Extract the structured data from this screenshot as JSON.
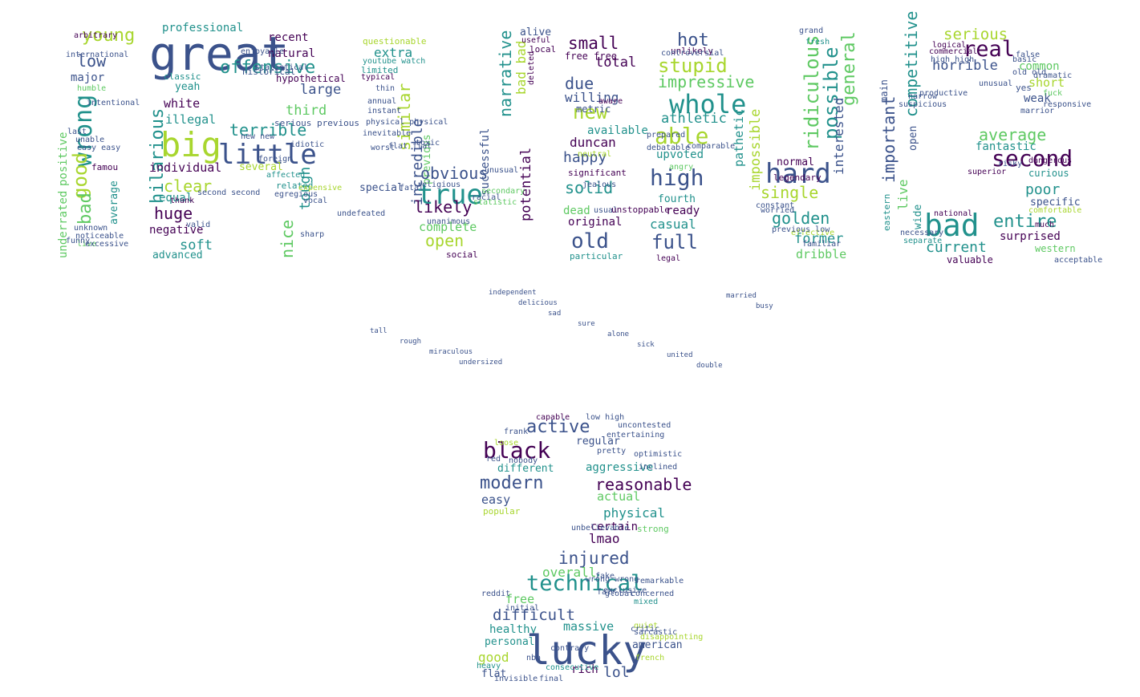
{
  "palette": [
    "#440154",
    "#3b528b",
    "#21918c",
    "#5ec962",
    "#a8d62e",
    "#fde725"
  ],
  "words": [
    {
      "t": "great",
      "c": "#3b528b"
    },
    {
      "t": "offensive",
      "c": "#21918c"
    },
    {
      "t": "young",
      "c": "#a8d62e"
    },
    {
      "t": "low",
      "c": "#3b528b"
    },
    {
      "t": "major",
      "c": "#3b528b"
    },
    {
      "t": "wrong",
      "c": "#21918c"
    },
    {
      "t": "good",
      "c": "#a8d62e"
    },
    {
      "t": "bad",
      "c": "#5ec962"
    },
    {
      "t": "positive",
      "c": "#5ec962"
    },
    {
      "t": "underrated",
      "c": "#5ec962"
    },
    {
      "t": "average",
      "c": "#21918c"
    },
    {
      "t": "famou",
      "c": "#440154"
    },
    {
      "t": "professional",
      "c": "#21918c"
    },
    {
      "t": "natural",
      "c": "#440154"
    },
    {
      "t": "recent",
      "c": "#440154"
    },
    {
      "t": "hypothetical",
      "c": "#440154"
    },
    {
      "t": "big",
      "c": "#a8d62e"
    },
    {
      "t": "little",
      "c": "#3b528b"
    },
    {
      "t": "terrible",
      "c": "#21918c"
    },
    {
      "t": "hilarious",
      "c": "#21918c"
    },
    {
      "t": "white",
      "c": "#440154"
    },
    {
      "t": "illegal",
      "c": "#21918c"
    },
    {
      "t": "individual",
      "c": "#440154"
    },
    {
      "t": "clear",
      "c": "#a8d62e"
    },
    {
      "t": "equal",
      "c": "#21918c"
    },
    {
      "t": "huge",
      "c": "#440154"
    },
    {
      "t": "negative",
      "c": "#440154"
    },
    {
      "t": "soft",
      "c": "#21918c"
    },
    {
      "t": "advanced",
      "c": "#21918c"
    },
    {
      "t": "classic",
      "c": "#21918c"
    },
    {
      "t": "yeah",
      "c": "#21918c"
    },
    {
      "t": "large",
      "c": "#3b528b"
    },
    {
      "t": "third",
      "c": "#5ec962"
    },
    {
      "t": "several",
      "c": "#a8d62e"
    },
    {
      "t": "nice",
      "c": "#5ec962"
    },
    {
      "t": "tough",
      "c": "#21918c"
    },
    {
      "t": "special",
      "c": "#3b528b"
    },
    {
      "t": "questionable",
      "c": "#a8d62e"
    },
    {
      "t": "extra",
      "c": "#21918c"
    },
    {
      "t": "youtube watch",
      "c": "#21918c"
    },
    {
      "t": "limited",
      "c": "#21918c"
    },
    {
      "t": "typical",
      "c": "#440154"
    },
    {
      "t": "similar",
      "c": "#a8d62e"
    },
    {
      "t": "incredible",
      "c": "#3b528b"
    },
    {
      "t": "previous",
      "c": "#5ec962"
    },
    {
      "t": "true",
      "c": "#21918c"
    },
    {
      "t": "obvious",
      "c": "#3b528b"
    },
    {
      "t": "likely",
      "c": "#440154"
    },
    {
      "t": "complete",
      "c": "#5ec962"
    },
    {
      "t": "open",
      "c": "#a8d62e"
    },
    {
      "t": "social",
      "c": "#440154"
    },
    {
      "t": "successful",
      "c": "#3b528b"
    },
    {
      "t": "narrative",
      "c": "#21918c"
    },
    {
      "t": "potential",
      "c": "#440154"
    },
    {
      "t": "bad bad",
      "c": "#a8d62e"
    },
    {
      "t": "alive",
      "c": "#3b528b"
    },
    {
      "t": "useful",
      "c": "#440154"
    },
    {
      "t": "local",
      "c": "#440154"
    },
    {
      "t": "deleted",
      "c": "#440154"
    },
    {
      "t": "small",
      "c": "#440154"
    },
    {
      "t": "free free",
      "c": "#440154"
    },
    {
      "t": "total",
      "c": "#440154"
    },
    {
      "t": "due",
      "c": "#3b528b"
    },
    {
      "t": "willing",
      "c": "#3b528b"
    },
    {
      "t": "new",
      "c": "#a8d62e"
    },
    {
      "t": "available",
      "c": "#21918c"
    },
    {
      "t": "duncan",
      "c": "#440154"
    },
    {
      "t": "happy",
      "c": "#3b528b"
    },
    {
      "t": "significant",
      "c": "#440154"
    },
    {
      "t": "solid",
      "c": "#21918c"
    },
    {
      "t": "dead",
      "c": "#5ec962"
    },
    {
      "t": "original",
      "c": "#440154"
    },
    {
      "t": "old",
      "c": "#3b528b"
    },
    {
      "t": "particular",
      "c": "#21918c"
    },
    {
      "t": "unlikely",
      "c": "#440154"
    },
    {
      "t": "hot",
      "c": "#3b528b"
    },
    {
      "t": "stupid",
      "c": "#a8d62e"
    },
    {
      "t": "impressive",
      "c": "#5ec962"
    },
    {
      "t": "whole",
      "c": "#21918c"
    },
    {
      "t": "athletic",
      "c": "#21918c"
    },
    {
      "t": "able",
      "c": "#a8d62e"
    },
    {
      "t": "upvoted",
      "c": "#21918c"
    },
    {
      "t": "high",
      "c": "#3b528b"
    },
    {
      "t": "fourth",
      "c": "#21918c"
    },
    {
      "t": "ready",
      "c": "#440154"
    },
    {
      "t": "casual",
      "c": "#21918c"
    },
    {
      "t": "full",
      "c": "#3b528b"
    },
    {
      "t": "ridiculous",
      "c": "#5ec962"
    },
    {
      "t": "possible",
      "c": "#21918c"
    },
    {
      "t": "general",
      "c": "#5ec962"
    },
    {
      "t": "pathetic",
      "c": "#21918c"
    },
    {
      "t": "impossible",
      "c": "#a8d62e"
    },
    {
      "t": "hard",
      "c": "#3b528b"
    },
    {
      "t": "single",
      "c": "#a8d62e"
    },
    {
      "t": "golden",
      "c": "#21918c"
    },
    {
      "t": "interested",
      "c": "#3b528b"
    },
    {
      "t": "normal",
      "c": "#440154"
    },
    {
      "t": "former",
      "c": "#21918c"
    },
    {
      "t": "dribble",
      "c": "#5ec962"
    },
    {
      "t": "legendary",
      "c": "#440154"
    },
    {
      "t": "important",
      "c": "#3b528b"
    },
    {
      "t": "competitive",
      "c": "#21918c"
    },
    {
      "t": "live",
      "c": "#5ec962"
    },
    {
      "t": "serious",
      "c": "#a8d62e"
    },
    {
      "t": "real",
      "c": "#440154"
    },
    {
      "t": "horrible",
      "c": "#3b528b"
    },
    {
      "t": "common",
      "c": "#5ec962"
    },
    {
      "t": "short",
      "c": "#a8d62e"
    },
    {
      "t": "weak",
      "c": "#3b528b"
    },
    {
      "t": "average",
      "c": "#5ec962"
    },
    {
      "t": "fantastic",
      "c": "#21918c"
    },
    {
      "t": "second",
      "c": "#440154"
    },
    {
      "t": "curious",
      "c": "#21918c"
    },
    {
      "t": "poor",
      "c": "#21918c"
    },
    {
      "t": "specific",
      "c": "#3b528b"
    },
    {
      "t": "bad",
      "c": "#21918c"
    },
    {
      "t": "entire",
      "c": "#21918c"
    },
    {
      "t": "surprised",
      "c": "#440154"
    },
    {
      "t": "current",
      "c": "#21918c"
    },
    {
      "t": "valuable",
      "c": "#440154"
    },
    {
      "t": "western",
      "c": "#5ec962"
    },
    {
      "t": "eastern",
      "c": "#21918c"
    },
    {
      "t": "wide",
      "c": "#21918c"
    },
    {
      "t": "open",
      "c": "#3b528b"
    },
    {
      "t": "main",
      "c": "#3b528b"
    },
    {
      "t": "commercial",
      "c": "#440154"
    },
    {
      "t": "high high",
      "c": "#3b528b"
    },
    {
      "t": "logical",
      "c": "#440154"
    },
    {
      "t": "capable",
      "c": "#440154"
    },
    {
      "t": "low high",
      "c": "#3b528b"
    },
    {
      "t": "active",
      "c": "#3b528b"
    },
    {
      "t": "regular",
      "c": "#3b528b"
    },
    {
      "t": "black",
      "c": "#440154"
    },
    {
      "t": "different",
      "c": "#21918c"
    },
    {
      "t": "modern",
      "c": "#3b528b"
    },
    {
      "t": "easy",
      "c": "#3b528b"
    },
    {
      "t": "popular",
      "c": "#a8d62e"
    },
    {
      "t": "aggressive",
      "c": "#21918c"
    },
    {
      "t": "reasonable",
      "c": "#440154"
    },
    {
      "t": "actual",
      "c": "#5ec962"
    },
    {
      "t": "physical",
      "c": "#21918c"
    },
    {
      "t": "certain",
      "c": "#440154"
    },
    {
      "t": "strong",
      "c": "#5ec962"
    },
    {
      "t": "lmao",
      "c": "#440154"
    },
    {
      "t": "injured",
      "c": "#3b528b"
    },
    {
      "t": "overall",
      "c": "#5ec962"
    },
    {
      "t": "technical",
      "c": "#21918c"
    },
    {
      "t": "free",
      "c": "#5ec962"
    },
    {
      "t": "difficult",
      "c": "#3b528b"
    },
    {
      "t": "healthy",
      "c": "#21918c"
    },
    {
      "t": "massive",
      "c": "#21918c"
    },
    {
      "t": "personal",
      "c": "#21918c"
    },
    {
      "t": "lucky",
      "c": "#3b528b"
    },
    {
      "t": "good",
      "c": "#a8d62e"
    },
    {
      "t": "flat",
      "c": "#3b528b"
    },
    {
      "t": "rich",
      "c": "#440154"
    },
    {
      "t": "lol",
      "c": "#3b528b"
    },
    {
      "t": "final",
      "c": "#3b528b"
    },
    {
      "t": "american",
      "c": "#3b528b"
    },
    {
      "t": "heavy",
      "c": "#21918c"
    },
    {
      "t": "international",
      "c": "#3b528b"
    },
    {
      "t": "arbitrary",
      "c": "#440154"
    },
    {
      "t": "humble",
      "c": "#5ec962"
    },
    {
      "t": "intentional",
      "c": "#3b528b"
    },
    {
      "t": "live",
      "c": "#5ec962"
    },
    {
      "t": "excessive",
      "c": "#3b528b"
    },
    {
      "t": "thank",
      "c": "#440154"
    },
    {
      "t": "historical",
      "c": "#3b528b"
    },
    {
      "t": "statistical",
      "c": "#3b528b"
    },
    {
      "t": "serious previous",
      "c": "#3b528b"
    },
    {
      "t": "related",
      "c": "#21918c"
    },
    {
      "t": "affected",
      "c": "#21918c"
    },
    {
      "t": "idiotic",
      "c": "#3b528b"
    },
    {
      "t": "egregious",
      "c": "#3b528b"
    },
    {
      "t": "enjoyable",
      "c": "#3b528b"
    },
    {
      "t": "unanimous",
      "c": "#3b528b"
    },
    {
      "t": "racial",
      "c": "#3b528b"
    },
    {
      "t": "statistic",
      "c": "#5ec962"
    },
    {
      "t": "secondary",
      "c": "#5ec962"
    },
    {
      "t": "unusual",
      "c": "#3b528b"
    },
    {
      "t": "usual",
      "c": "#3b528b"
    },
    {
      "t": "aware",
      "c": "#440154"
    },
    {
      "t": "metric",
      "c": "#3b528b"
    },
    {
      "t": "neutral",
      "c": "#a8d62e"
    },
    {
      "t": "unstoppable",
      "c": "#440154"
    },
    {
      "t": "angry",
      "c": "#5ec962"
    },
    {
      "t": "legal",
      "c": "#440154"
    },
    {
      "t": "comparable",
      "c": "#3b528b"
    },
    {
      "t": "controversial",
      "c": "#3b528b"
    },
    {
      "t": "effective",
      "c": "#a8d62e"
    },
    {
      "t": "worried",
      "c": "#3b528b"
    },
    {
      "t": "familiar",
      "c": "#3b528b"
    },
    {
      "t": "constant",
      "c": "#3b528b"
    },
    {
      "t": "previous low",
      "c": "#3b528b"
    },
    {
      "t": "grand",
      "c": "#3b528b"
    },
    {
      "t": "fresh",
      "c": "#21918c"
    },
    {
      "t": "false",
      "c": "#3b528b"
    },
    {
      "t": "basic",
      "c": "#3b528b"
    },
    {
      "t": "old old",
      "c": "#3b528b"
    },
    {
      "t": "yes",
      "c": "#3b528b"
    },
    {
      "t": "dangerous",
      "c": "#440154"
    },
    {
      "t": "comfortable",
      "c": "#a8d62e"
    },
    {
      "t": "much",
      "c": "#440154"
    },
    {
      "t": "superior",
      "c": "#440154"
    },
    {
      "t": "national",
      "c": "#440154"
    },
    {
      "t": "necessary",
      "c": "#3b528b"
    },
    {
      "t": "separate",
      "c": "#21918c"
    },
    {
      "t": "acceptable",
      "c": "#3b528b"
    },
    {
      "t": "fuck",
      "c": "#5ec962"
    },
    {
      "t": "loose",
      "c": "#a8d62e"
    },
    {
      "t": "red",
      "c": "#3b528b"
    },
    {
      "t": "nobody",
      "c": "#3b528b"
    },
    {
      "t": "wrong wrong",
      "c": "#3b528b"
    },
    {
      "t": "quiet",
      "c": "#a8d62e"
    },
    {
      "t": "sarcastic",
      "c": "#3b528b"
    },
    {
      "t": "french",
      "c": "#a8d62e"
    },
    {
      "t": "invisible",
      "c": "#3b528b"
    },
    {
      "t": "consecutive",
      "c": "#21918c"
    },
    {
      "t": "nba",
      "c": "#3b528b"
    },
    {
      "t": "mixed",
      "c": "#21918c"
    },
    {
      "t": "unbelievable",
      "c": "#3b528b"
    },
    {
      "t": "global",
      "c": "#3b528b"
    },
    {
      "t": "undefeated",
      "c": "#3b528b"
    },
    {
      "t": "expensive",
      "c": "#a8d62e"
    },
    {
      "t": "vocal",
      "c": "#3b528b"
    },
    {
      "t": "sharp",
      "c": "#3b528b"
    },
    {
      "t": "valid",
      "c": "#3b528b"
    },
    {
      "t": "second second",
      "c": "#3b528b"
    },
    {
      "t": "new new",
      "c": "#3b528b"
    },
    {
      "t": "foreign",
      "c": "#3b528b"
    },
    {
      "t": "narrow",
      "c": "#3b528b"
    },
    {
      "t": "suspicious",
      "c": "#3b528b"
    },
    {
      "t": "productive",
      "c": "#3b528b"
    },
    {
      "t": "marrior",
      "c": "#3b528b"
    },
    {
      "t": "responsive",
      "c": "#3b528b"
    },
    {
      "t": "unusual",
      "c": "#3b528b"
    },
    {
      "t": "dramatic",
      "c": "#3b528b"
    },
    {
      "t": "risky",
      "c": "#3b528b"
    },
    {
      "t": "debatable",
      "c": "#3b528b"
    },
    {
      "t": "prepared",
      "c": "#3b528b"
    },
    {
      "t": "jealous",
      "c": "#3b528b"
    },
    {
      "t": "toxic",
      "c": "#3b528b"
    },
    {
      "t": "religious",
      "c": "#3b528b"
    },
    {
      "t": "reddit",
      "c": "#3b528b"
    },
    {
      "t": "fair",
      "c": "#3b528b"
    },
    {
      "t": "fake",
      "c": "#3b528b"
    },
    {
      "t": "uncontested",
      "c": "#3b528b"
    },
    {
      "t": "pretty",
      "c": "#3b528b"
    },
    {
      "t": "frank",
      "c": "#3b528b"
    },
    {
      "t": "optimistic",
      "c": "#3b528b"
    },
    {
      "t": "entertaining",
      "c": "#3b528b"
    },
    {
      "t": "inclined",
      "c": "#3b528b"
    },
    {
      "t": "critic",
      "c": "#3b528b"
    },
    {
      "t": "disappointing",
      "c": "#a8d62e"
    },
    {
      "t": "initial",
      "c": "#3b528b"
    },
    {
      "t": "exclusive",
      "c": "#3b528b"
    },
    {
      "t": "contrary",
      "c": "#3b528b"
    },
    {
      "t": "concerned",
      "c": "#3b528b"
    },
    {
      "t": "remarkable",
      "c": "#3b528b"
    },
    {
      "t": "unknown",
      "c": "#3b528b"
    },
    {
      "t": "noticeable",
      "c": "#3b528b"
    },
    {
      "t": "funny",
      "c": "#3b528b"
    },
    {
      "t": "easy easy",
      "c": "#3b528b"
    },
    {
      "t": "unable",
      "c": "#3b528b"
    },
    {
      "t": "last",
      "c": "#3b528b"
    },
    {
      "t": "annual",
      "c": "#3b528b"
    },
    {
      "t": "instant",
      "c": "#3b528b"
    },
    {
      "t": "flat flat",
      "c": "#3b528b"
    },
    {
      "t": "physical physical",
      "c": "#3b528b"
    },
    {
      "t": "inevitable",
      "c": "#3b528b"
    },
    {
      "t": "worst",
      "c": "#3b528b"
    },
    {
      "t": "fatal",
      "c": "#3b528b"
    },
    {
      "t": "thin",
      "c": "#3b528b"
    },
    {
      "t": "tall",
      "c": "#3b528b"
    },
    {
      "t": "rough",
      "c": "#3b528b"
    },
    {
      "t": "miraculous",
      "c": "#3b528b"
    },
    {
      "t": "undersized",
      "c": "#3b528b"
    },
    {
      "t": "independent",
      "c": "#3b528b"
    },
    {
      "t": "delicious",
      "c": "#3b528b"
    },
    {
      "t": "sad",
      "c": "#3b528b"
    },
    {
      "t": "sure",
      "c": "#3b528b"
    },
    {
      "t": "alone",
      "c": "#3b528b"
    },
    {
      "t": "sick",
      "c": "#3b528b"
    },
    {
      "t": "united",
      "c": "#3b528b"
    },
    {
      "t": "double",
      "c": "#3b528b"
    },
    {
      "t": "married",
      "c": "#3b528b"
    },
    {
      "t": "busy",
      "c": "#3b528b"
    }
  ]
}
